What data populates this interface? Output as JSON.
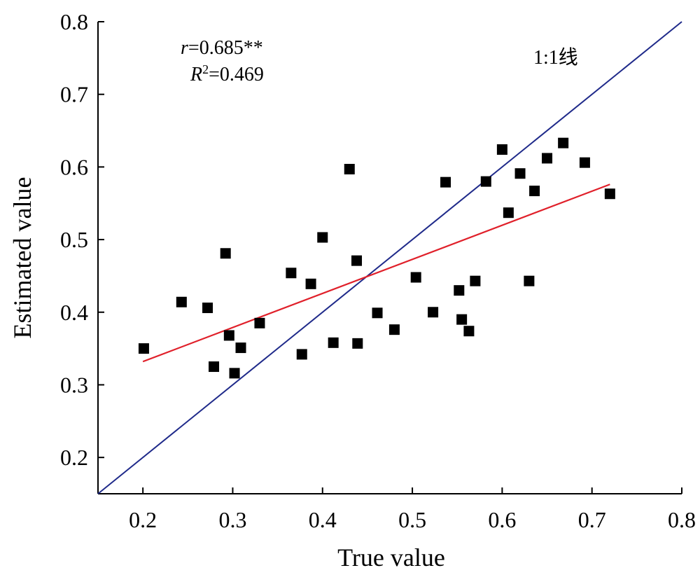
{
  "chart_data": {
    "type": "scatter",
    "xlabel": "True value",
    "ylabel": "Estimated value",
    "xlim": [
      0.15,
      0.8
    ],
    "ylim": [
      0.15,
      0.8
    ],
    "x_ticks": [
      "0.2",
      "0.3",
      "0.4",
      "0.5",
      "0.6",
      "0.7",
      "0.8"
    ],
    "y_ticks": [
      "0.2",
      "0.3",
      "0.4",
      "0.5",
      "0.6",
      "0.7",
      "0.8"
    ],
    "grid": false,
    "annotations": {
      "r_symbol": "r",
      "r_value": "=0.685**",
      "r2_symbol": "R",
      "r2_sup": "2",
      "r2_value": "=0.469",
      "one_to_one_label": "1:1线"
    },
    "colors": {
      "points": "#000000",
      "one_to_one_line": "#1f2a8a",
      "fit_line": "#e0202a"
    },
    "one_to_one_line": {
      "x": [
        0.15,
        0.8
      ],
      "y": [
        0.15,
        0.8
      ]
    },
    "fit_line": {
      "x": [
        0.2,
        0.72
      ],
      "y": [
        0.332,
        0.576
      ]
    },
    "points": {
      "x": [
        0.201,
        0.243,
        0.272,
        0.279,
        0.292,
        0.296,
        0.302,
        0.309,
        0.33,
        0.365,
        0.377,
        0.387,
        0.4,
        0.412,
        0.43,
        0.438,
        0.439,
        0.461,
        0.48,
        0.504,
        0.523,
        0.537,
        0.552,
        0.555,
        0.563,
        0.57,
        0.582,
        0.6,
        0.607,
        0.62,
        0.63,
        0.636,
        0.65,
        0.668,
        0.692,
        0.72
      ],
      "y": [
        0.35,
        0.414,
        0.406,
        0.325,
        0.481,
        0.368,
        0.316,
        0.351,
        0.385,
        0.454,
        0.342,
        0.439,
        0.503,
        0.358,
        0.597,
        0.471,
        0.357,
        0.399,
        0.376,
        0.448,
        0.4,
        0.579,
        0.43,
        0.39,
        0.374,
        0.443,
        0.58,
        0.624,
        0.537,
        0.591,
        0.443,
        0.567,
        0.612,
        0.633,
        0.606,
        0.563
      ]
    }
  }
}
